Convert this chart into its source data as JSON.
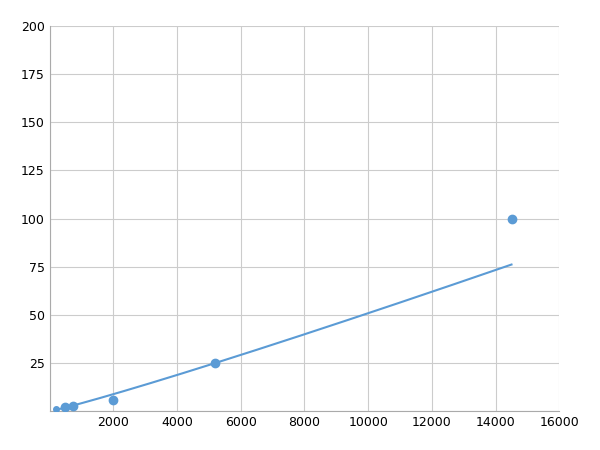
{
  "x": [
    200,
    500,
    750,
    2000,
    5200,
    14500
  ],
  "y": [
    1,
    2,
    2.5,
    6,
    25,
    100
  ],
  "line_color": "#5b9bd5",
  "marker_color": "#5b9bd5",
  "marker_size": 6,
  "line_width": 1.5,
  "xlim": [
    0,
    16000
  ],
  "ylim": [
    0,
    200
  ],
  "xticks": [
    0,
    2000,
    4000,
    6000,
    8000,
    10000,
    12000,
    14000,
    16000
  ],
  "yticks": [
    0,
    25,
    50,
    75,
    100,
    125,
    150,
    175,
    200
  ],
  "grid_color": "#cccccc",
  "background_color": "#ffffff",
  "fig_bg_color": "#ffffff"
}
